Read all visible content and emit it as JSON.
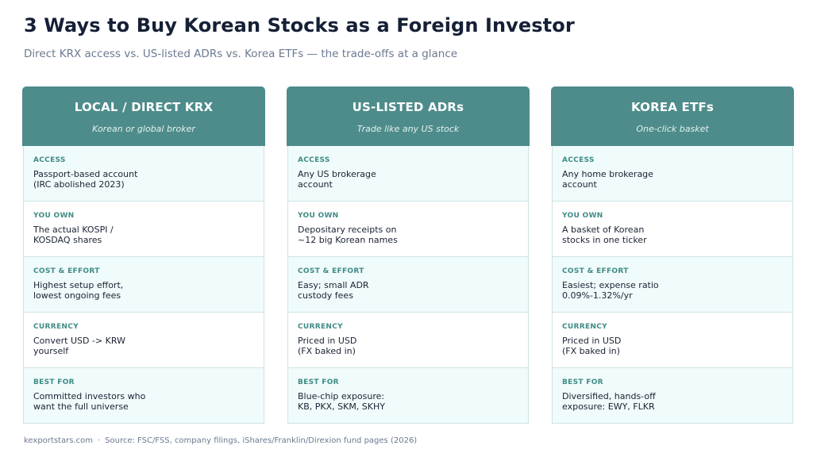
{
  "title": "3 Ways to Buy Korean Stocks as a Foreign Investor",
  "subtitle": "Direct KRX access vs. US-listed ADRs vs. Korea ETFs — the trade-offs at a glance",
  "columns": [
    {
      "title": "LOCAL / DIRECT KRX",
      "tagline": "Korean or global broker",
      "rows": [
        {
          "label": "ACCESS",
          "value": "Passport-based account\n(IRC abolished 2023)"
        },
        {
          "label": "YOU OWN",
          "value": "The actual KOSPI /\nKOSDAQ shares"
        },
        {
          "label": "COST & EFFORT",
          "value": "Highest setup effort,\nlowest ongoing fees"
        },
        {
          "label": "CURRENCY",
          "value": "Convert USD -> KRW\nyourself"
        },
        {
          "label": "BEST FOR",
          "value": "Committed investors who\nwant the full universe"
        }
      ]
    },
    {
      "title": "US-LISTED ADRs",
      "tagline": "Trade like any US stock",
      "rows": [
        {
          "label": "ACCESS",
          "value": "Any US brokerage\naccount"
        },
        {
          "label": "YOU OWN",
          "value": "Depositary receipts on\n~12 big Korean names"
        },
        {
          "label": "COST & EFFORT",
          "value": "Easy; small ADR\ncustody fees"
        },
        {
          "label": "CURRENCY",
          "value": "Priced in USD\n(FX baked in)"
        },
        {
          "label": "BEST FOR",
          "value": "Blue-chip exposure:\nKB, PKX, SKM, SKHY"
        }
      ]
    },
    {
      "title": "KOREA ETFs",
      "tagline": "One-click basket",
      "rows": [
        {
          "label": "ACCESS",
          "value": "Any home brokerage\naccount"
        },
        {
          "label": "YOU OWN",
          "value": "A basket of Korean\nstocks in one ticker"
        },
        {
          "label": "COST & EFFORT",
          "value": "Easiest; expense ratio\n0.09%-1.32%/yr"
        },
        {
          "label": "CURRENCY",
          "value": "Priced in USD\n(FX baked in)"
        },
        {
          "label": "BEST FOR",
          "value": "Diversified, hands-off\nexposure: EWY, FLKR"
        }
      ]
    }
  ],
  "footer": {
    "site": "kexportstars.com",
    "separator": "·",
    "source": "Source: FSC/FSS, company filings, iShares/Franklin/Direxion fund pages (2026)"
  },
  "colors": {
    "header_bg": "#4d8c8a",
    "label": "#3f8b86",
    "row_alt_bg": "#f0fbfb",
    "title": "#152036"
  }
}
